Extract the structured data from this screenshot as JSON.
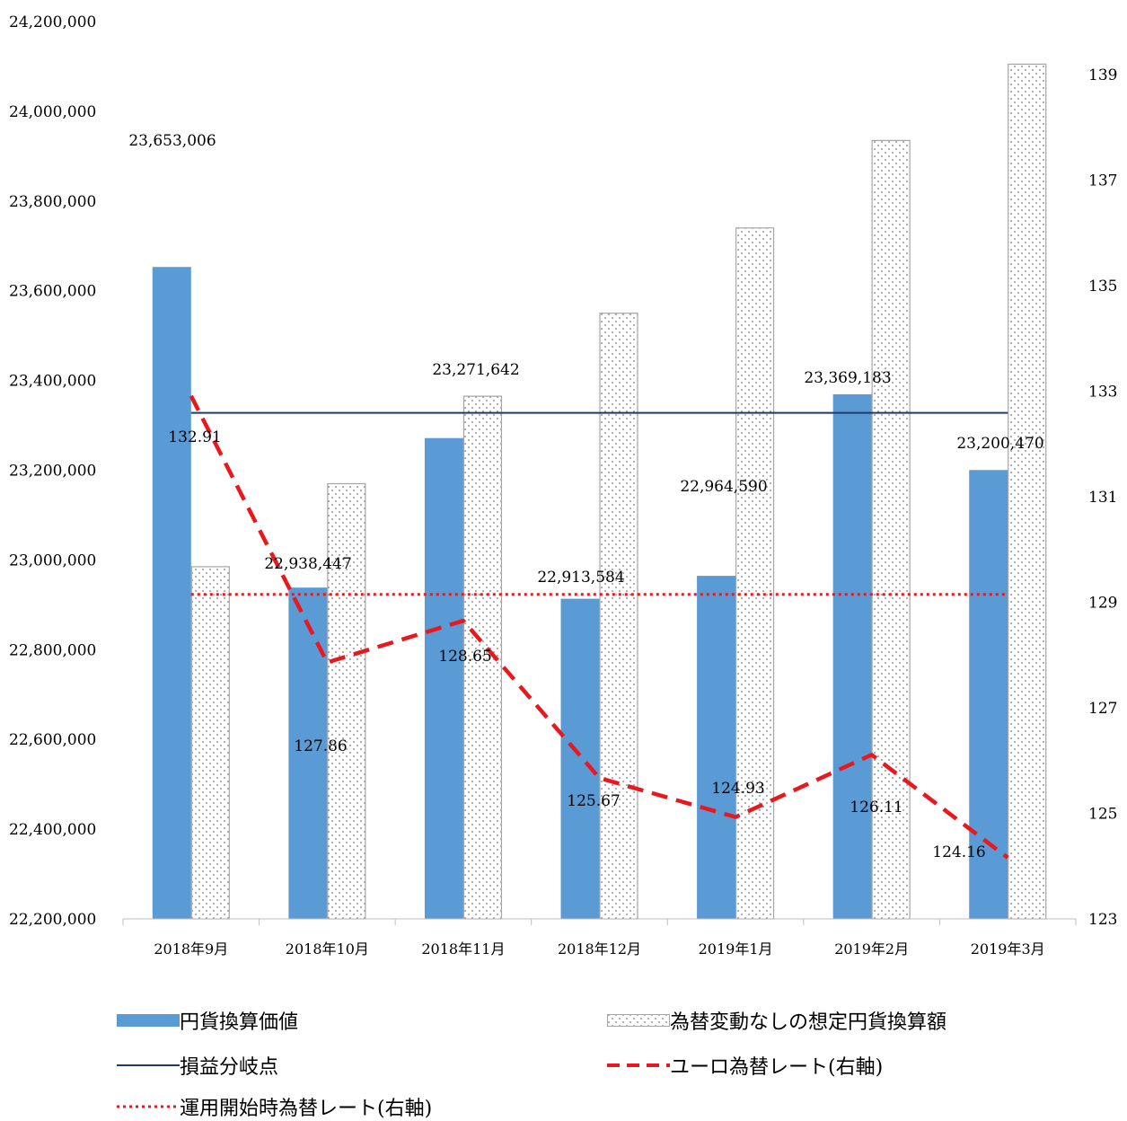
{
  "chart_data": {
    "type": "bar",
    "categories": [
      "2018年9月",
      "2018年10月",
      "2018年11月",
      "2018年12月",
      "2019年1月",
      "2019年2月",
      "2019年3月"
    ],
    "y_left": {
      "ylim": [
        22200000,
        24200000
      ],
      "ticks": [
        "22,200,000",
        "22,400,000",
        "22,600,000",
        "22,800,000",
        "23,000,000",
        "23,200,000",
        "23,400,000",
        "23,600,000",
        "23,800,000",
        "24,000,000",
        "24,200,000"
      ]
    },
    "y_right": {
      "ylim": [
        123,
        140
      ],
      "ticks": [
        "123",
        "125",
        "127",
        "129",
        "131",
        "133",
        "135",
        "137",
        "139"
      ]
    },
    "series": [
      {
        "name": "円貨換算価値",
        "type": "bar",
        "axis": "left",
        "color": "#5B9BD5",
        "values": [
          23653006,
          22938447,
          23271642,
          22913584,
          22964590,
          23369183,
          23200470
        ],
        "labels": [
          "23,653,006",
          "22,938,447",
          "23,271,642",
          "22,913,584",
          "22,964,590",
          "23,369,183",
          "23,200,470"
        ]
      },
      {
        "name": "為替変動なしの想定円貨換算額",
        "type": "bar",
        "axis": "left",
        "pattern": "dotted",
        "values": [
          22985000,
          23170000,
          23365000,
          23550000,
          23740000,
          23935000,
          24105000
        ]
      },
      {
        "name": "損益分岐点",
        "type": "line",
        "axis": "left",
        "color": "#1F3A6E",
        "style": "solid",
        "values": [
          23328000,
          23328000,
          23328000,
          23328000,
          23328000,
          23328000,
          23328000
        ]
      },
      {
        "name": "ユーロ為替レート(右軸)",
        "type": "line",
        "axis": "right",
        "color": "#E8191E",
        "style": "dashed",
        "values": [
          132.91,
          127.86,
          128.65,
          125.67,
          124.93,
          126.11,
          124.16
        ],
        "labels": [
          "132.91",
          "127.86",
          "128.65",
          "125.67",
          "124.93",
          "126.11",
          "124.16"
        ]
      },
      {
        "name": "運用開始時為替レート(右軸)",
        "type": "line",
        "axis": "right",
        "color": "#E8191E",
        "style": "dotted",
        "values": [
          129.15,
          129.15,
          129.15,
          129.15,
          129.15,
          129.15,
          129.15
        ]
      }
    ],
    "legend_position": "bottom",
    "grid": false
  }
}
